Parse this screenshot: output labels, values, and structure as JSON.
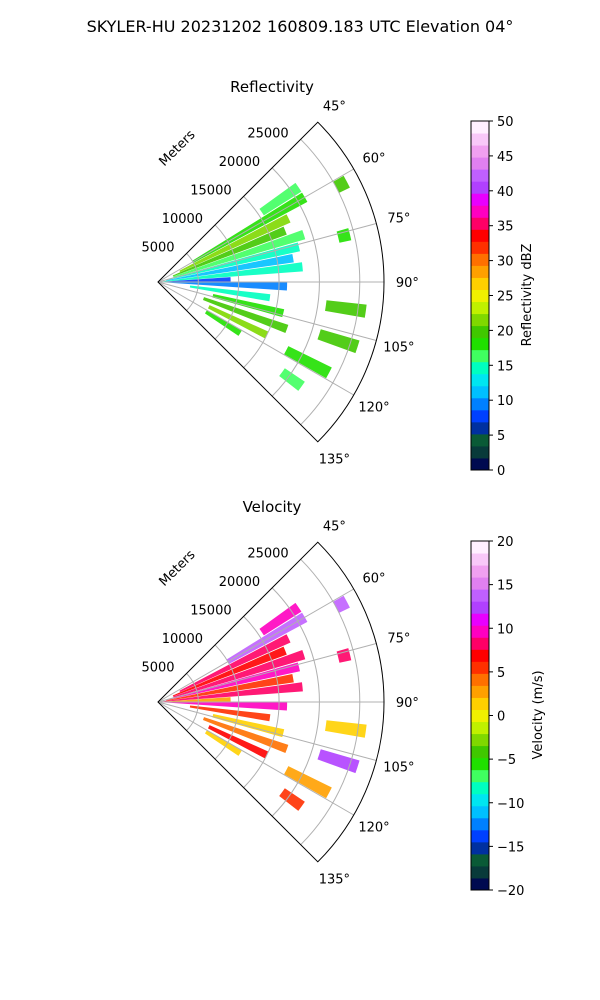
{
  "figure": {
    "title": "SKYLER-HU  20231202  160809.183 UTC Elevation 04°"
  },
  "chart_data": [
    {
      "type": "heatmap",
      "subtype": "polar-sector-ppi",
      "title": "Reflectivity",
      "radial_label": "Meters",
      "radial_ticks": [
        5000,
        10000,
        15000,
        20000,
        25000
      ],
      "radial_range": [
        0,
        28000
      ],
      "angle_ticks": [
        "45°",
        "60°",
        "75°",
        "90°",
        "105°",
        "120°",
        "135°"
      ],
      "angle_range_deg": [
        45,
        135
      ],
      "grid": true,
      "colorbar": {
        "label": "Reflectivity dBZ",
        "range": [
          0,
          50
        ],
        "ticks": [
          0,
          5,
          10,
          15,
          20,
          25,
          30,
          35,
          40,
          45,
          50
        ],
        "colors": [
          "#000a50",
          "#083a3a",
          "#0a5a36",
          "#0030a0",
          "#0040ff",
          "#0080ff",
          "#00c0ff",
          "#00e6f0",
          "#00ffc0",
          "#40ff60",
          "#20e000",
          "#40c800",
          "#80d800",
          "#c0f000",
          "#f0f000",
          "#ffd000",
          "#ffa000",
          "#ff7000",
          "#ff3000",
          "#ff0000",
          "#ff0066",
          "#ff00c0",
          "#e800ff",
          "#b040ff",
          "#c060ff",
          "#e080f0",
          "#f0a0f0",
          "#f8c8f8",
          "#fff0ff"
        ]
      },
      "echo_cells": [
        {
          "az": 56,
          "r": [
            15500,
            21000
          ],
          "dbz": 16
        },
        {
          "az": 60,
          "r": [
            5000,
            21000
          ],
          "dbz": 18
        },
        {
          "az": 64,
          "r": [
            3000,
            18000
          ],
          "dbz": 22
        },
        {
          "az": 68,
          "r": [
            2000,
            17000
          ],
          "dbz": 20
        },
        {
          "az": 72,
          "r": [
            2000,
            19000
          ],
          "dbz": 17
        },
        {
          "az": 76,
          "r": [
            1000,
            18000
          ],
          "dbz": 14
        },
        {
          "az": 80,
          "r": [
            1000,
            17000
          ],
          "dbz": 12
        },
        {
          "az": 84,
          "r": [
            500,
            18000
          ],
          "dbz": 15
        },
        {
          "az": 88,
          "r": [
            500,
            9000
          ],
          "dbz": 8
        },
        {
          "az": 92,
          "r": [
            500,
            16000
          ],
          "dbz": 10
        },
        {
          "az": 98,
          "r": [
            4000,
            14000
          ],
          "dbz": 15
        },
        {
          "az": 104,
          "r": [
            7000,
            16000
          ],
          "dbz": 18
        },
        {
          "az": 110,
          "r": [
            6000,
            17000
          ],
          "dbz": 20
        },
        {
          "az": 116,
          "r": [
            7000,
            15000
          ],
          "dbz": 22
        },
        {
          "az": 122,
          "r": [
            7000,
            12000
          ],
          "dbz": 18
        },
        {
          "az": 76,
          "r": [
            23000,
            24500
          ],
          "dbz": 18
        },
        {
          "az": 98,
          "r": [
            21000,
            26000
          ],
          "dbz": 20
        },
        {
          "az": 108,
          "r": [
            21000,
            26000
          ],
          "dbz": 20
        },
        {
          "az": 118,
          "r": [
            18000,
            24000
          ],
          "dbz": 18
        },
        {
          "az": 126,
          "r": [
            19000,
            22000
          ],
          "dbz": 17
        },
        {
          "az": 62,
          "r": [
            25000,
            26500
          ],
          "dbz": 20
        }
      ]
    },
    {
      "type": "heatmap",
      "subtype": "polar-sector-ppi",
      "title": "Velocity",
      "radial_label": "Meters",
      "radial_ticks": [
        5000,
        10000,
        15000,
        20000,
        25000
      ],
      "radial_range": [
        0,
        28000
      ],
      "angle_ticks": [
        "45°",
        "60°",
        "75°",
        "90°",
        "105°",
        "120°",
        "135°"
      ],
      "angle_range_deg": [
        45,
        135
      ],
      "grid": true,
      "colorbar": {
        "label": "Velocity (m/s)",
        "range": [
          -20,
          20
        ],
        "ticks": [
          -20,
          -15,
          -10,
          -5,
          0,
          5,
          10,
          15,
          20
        ],
        "colors": [
          "#000a50",
          "#083a3a",
          "#0a5a36",
          "#0030a0",
          "#0040ff",
          "#0080ff",
          "#00c0ff",
          "#00e6f0",
          "#00ffc0",
          "#40ff60",
          "#20e000",
          "#40c800",
          "#80d800",
          "#c0f000",
          "#f0f000",
          "#ffd000",
          "#ffa000",
          "#ff7000",
          "#ff3000",
          "#ff0000",
          "#ff0066",
          "#ff00c0",
          "#e800ff",
          "#b040ff",
          "#c060ff",
          "#e080f0",
          "#f0a0f0",
          "#f8c8f8",
          "#fff0ff"
        ]
      },
      "echo_cells": [
        {
          "az": 56,
          "r": [
            15500,
            21000
          ],
          "v": 9
        },
        {
          "az": 60,
          "r": [
            10000,
            21000
          ],
          "v": 14
        },
        {
          "az": 64,
          "r": [
            3000,
            18000
          ],
          "v": 8
        },
        {
          "az": 68,
          "r": [
            2000,
            17000
          ],
          "v": 7
        },
        {
          "az": 72,
          "r": [
            2000,
            19000
          ],
          "v": 8
        },
        {
          "az": 76,
          "r": [
            1000,
            18000
          ],
          "v": 9
        },
        {
          "az": 80,
          "r": [
            1000,
            17000
          ],
          "v": 6
        },
        {
          "az": 84,
          "r": [
            500,
            18000
          ],
          "v": 8
        },
        {
          "az": 88,
          "r": [
            500,
            9000
          ],
          "v": 3
        },
        {
          "az": 92,
          "r": [
            500,
            16000
          ],
          "v": 9
        },
        {
          "az": 98,
          "r": [
            4000,
            14000
          ],
          "v": 6
        },
        {
          "az": 104,
          "r": [
            7000,
            16000
          ],
          "v": 2
        },
        {
          "az": 110,
          "r": [
            6000,
            17000
          ],
          "v": 4
        },
        {
          "az": 116,
          "r": [
            7000,
            15000
          ],
          "v": 7
        },
        {
          "az": 122,
          "r": [
            7000,
            12000
          ],
          "v": 1
        },
        {
          "az": 76,
          "r": [
            23000,
            24500
          ],
          "v": 8
        },
        {
          "az": 98,
          "r": [
            21000,
            26000
          ],
          "v": 2
        },
        {
          "az": 108,
          "r": [
            21000,
            26000
          ],
          "v": 12
        },
        {
          "az": 118,
          "r": [
            18000,
            24000
          ],
          "v": 3
        },
        {
          "az": 126,
          "r": [
            19000,
            22000
          ],
          "v": 6
        },
        {
          "az": 62,
          "r": [
            25000,
            26500
          ],
          "v": 14
        }
      ]
    }
  ]
}
